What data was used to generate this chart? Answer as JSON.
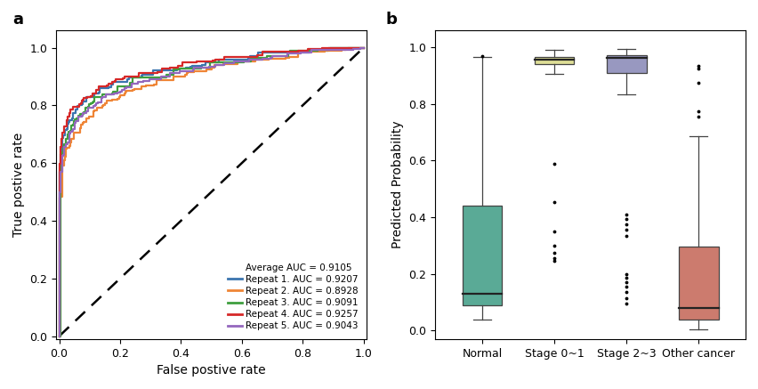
{
  "panel_a_label": "a",
  "panel_b_label": "b",
  "roc_curves": {
    "repeat1": {
      "color": "#3b75af",
      "auc": 0.9207,
      "label": "Repeat 1. AUC = 0.9207"
    },
    "repeat2": {
      "color": "#ef8536",
      "auc": 0.8928,
      "label": "Repeat 2. AUC = 0.8928"
    },
    "repeat3": {
      "color": "#3e9f3e",
      "auc": 0.9091,
      "label": "Repeat 3. AUC = 0.9091"
    },
    "repeat4": {
      "color": "#d62828",
      "auc": 0.9257,
      "label": "Repeat 4. AUC = 0.9257"
    },
    "repeat5": {
      "color": "#9467bd",
      "auc": 0.9043,
      "label": "Repeat 5. AUC = 0.9043"
    }
  },
  "average_auc_label": "Average AUC = 0.9105",
  "xlabel_a": "False postive rate",
  "ylabel_a": "True postive rate",
  "box_data": {
    "Normal": {
      "color": "#5aaa96",
      "median": 0.13,
      "q1": 0.09,
      "q3": 0.44,
      "whislo": 0.04,
      "whishi": 0.965,
      "fliers_above": [
        0.97
      ],
      "fliers_below": []
    },
    "Stage 0~1": {
      "color": "#dede96",
      "median": 0.955,
      "q1": 0.942,
      "q3": 0.965,
      "whislo": 0.905,
      "whishi": 0.99,
      "fliers_above": [],
      "fliers_below": [
        0.59,
        0.455,
        0.35,
        0.3,
        0.275,
        0.255,
        0.245
      ]
    },
    "Stage 2~3": {
      "color": "#9898c0",
      "median": 0.963,
      "q1": 0.91,
      "q3": 0.972,
      "whislo": 0.835,
      "whishi": 0.995,
      "fliers_above": [],
      "fliers_below": [
        0.41,
        0.395,
        0.375,
        0.355,
        0.335,
        0.2,
        0.185,
        0.17,
        0.155,
        0.135,
        0.115,
        0.095
      ]
    },
    "Other cancer": {
      "color": "#cc7b6e",
      "median": 0.08,
      "q1": 0.04,
      "q3": 0.295,
      "whislo": 0.005,
      "whishi": 0.685,
      "fliers_above": [
        0.935,
        0.925,
        0.875,
        0.775,
        0.755
      ],
      "fliers_below": []
    }
  },
  "ylabel_b": "Predicted Probability",
  "ylim_b": [
    -0.03,
    1.06
  ]
}
